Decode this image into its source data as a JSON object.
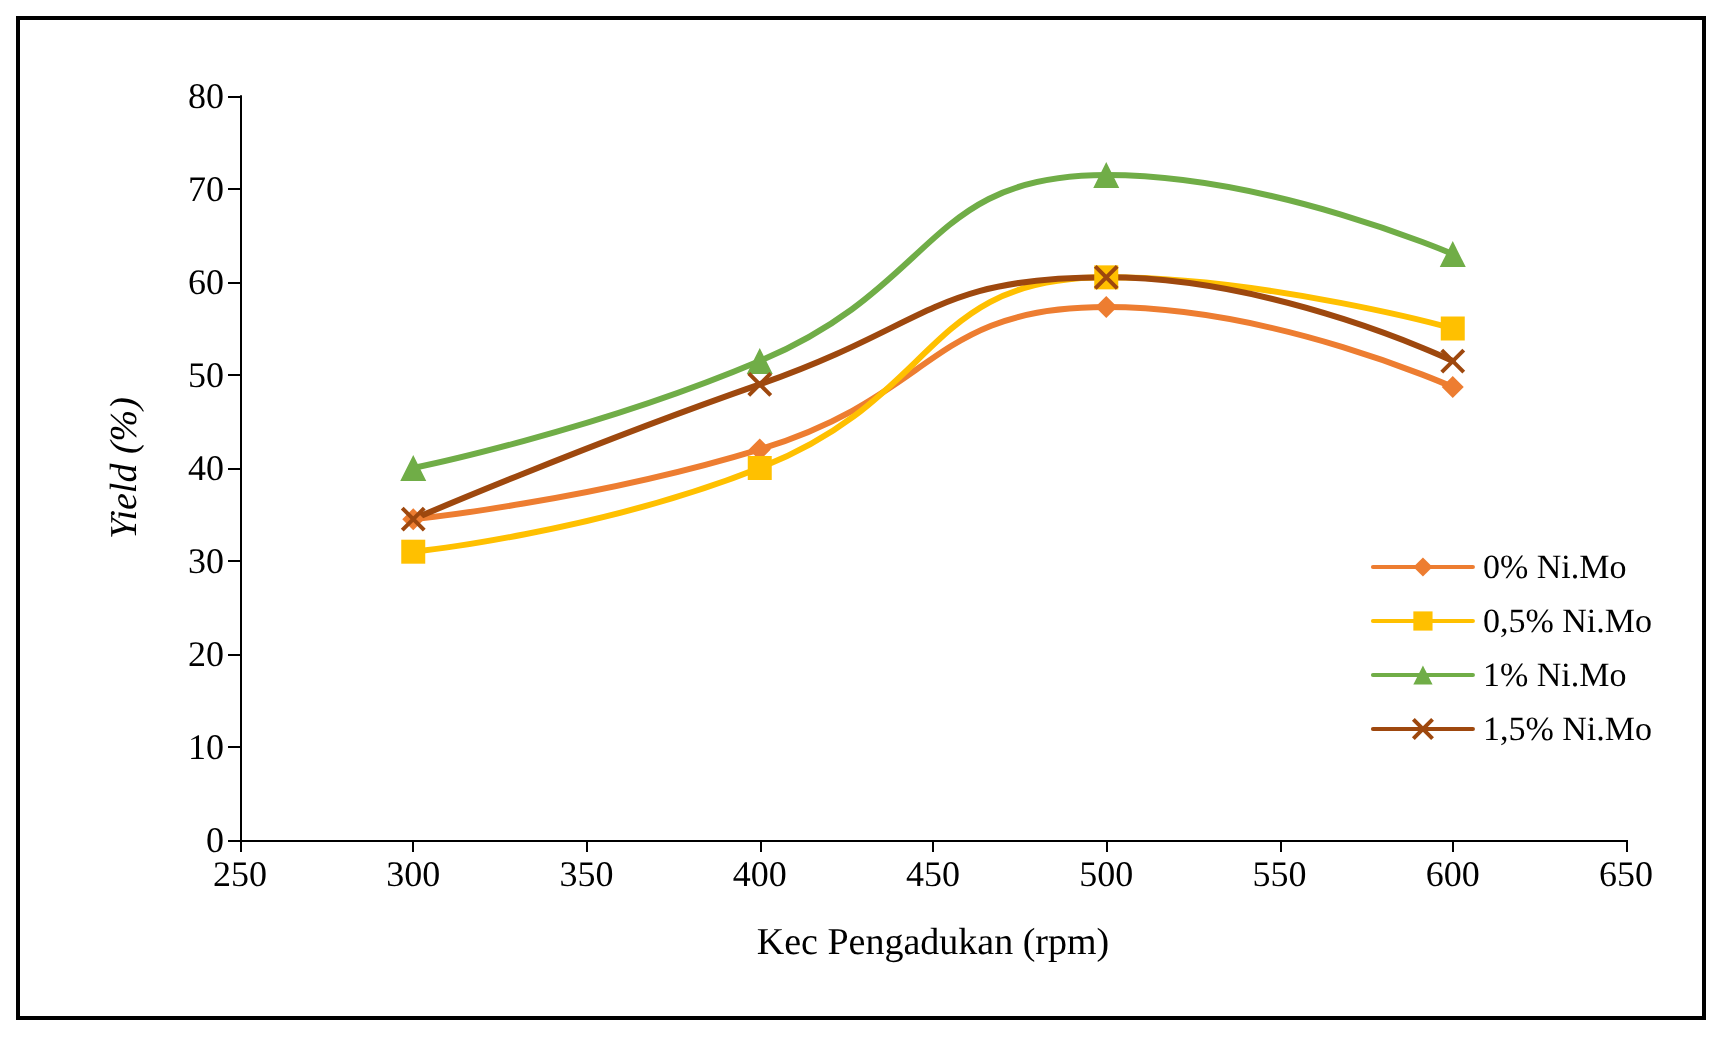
{
  "chart_data": {
    "type": "line",
    "xlabel": "Kec Pengadukan (rpm)",
    "ylabel": "Yield (%)",
    "x": [
      300,
      400,
      500,
      600
    ],
    "series": [
      {
        "name": "0% Ni.Mo",
        "color": "#ed7d31",
        "marker": "diamond",
        "values": [
          34.5,
          42,
          57.3,
          48.7
        ]
      },
      {
        "name": "0,5% Ni.Mo",
        "color": "#ffc000",
        "marker": "square",
        "values": [
          31,
          40,
          60.5,
          55
        ]
      },
      {
        "name": "1% Ni.Mo",
        "color": "#70ad47",
        "marker": "triangle",
        "values": [
          40,
          51.5,
          71.5,
          63
        ]
      },
      {
        "name": "1,5% Ni.Mo",
        "color": "#9e480e",
        "marker": "cross",
        "values": [
          34.5,
          49,
          60.5,
          51.5
        ]
      }
    ],
    "xlim": [
      250,
      650
    ],
    "xticks": [
      250,
      300,
      350,
      400,
      450,
      500,
      550,
      600,
      650
    ],
    "ylim": [
      0,
      80
    ],
    "yticks": [
      0,
      10,
      20,
      30,
      40,
      50,
      60,
      70,
      80
    ],
    "grid": false,
    "legend": "right",
    "line_style": "solid"
  }
}
